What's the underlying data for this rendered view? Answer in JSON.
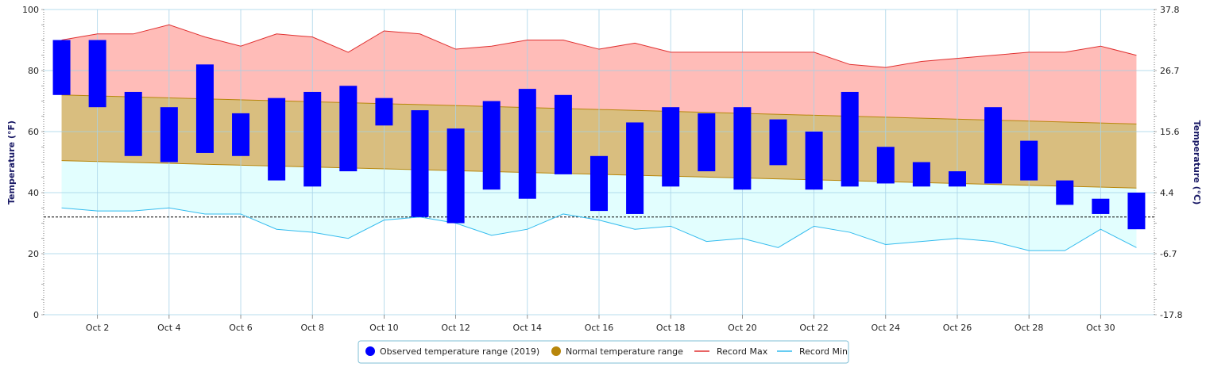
{
  "chart_data": {
    "type": "bar",
    "title": "",
    "xlabel": "",
    "ylabel": "Temperature (°F)",
    "y2label": "Temperature (°C)",
    "ylim": [
      0,
      100
    ],
    "y_ticks": [
      0,
      20,
      40,
      60,
      80,
      100
    ],
    "y2_ticks": [
      "-17.8",
      "-6.7",
      "4.4",
      "15.6",
      "26.7",
      "37.8"
    ],
    "x_tick_days": [
      2,
      4,
      6,
      8,
      10,
      12,
      14,
      16,
      18,
      20,
      22,
      24,
      26,
      28,
      30
    ],
    "x_tick_labels": [
      "Oct 2",
      "Oct 4",
      "Oct 6",
      "Oct 8",
      "Oct 10",
      "Oct 12",
      "Oct 14",
      "Oct 16",
      "Oct 18",
      "Oct 20",
      "Oct 22",
      "Oct 24",
      "Oct 26",
      "Oct 28",
      "Oct 30"
    ],
    "freezing_line": 32,
    "grid": true,
    "legend_position": "bottom",
    "series": [
      {
        "name": "Observed temperature range (2019)",
        "color": "#0000ff",
        "days": [
          1,
          2,
          3,
          4,
          5,
          6,
          7,
          8,
          9,
          10,
          11,
          12,
          13,
          14,
          15,
          16,
          17,
          18,
          19,
          20,
          21,
          22,
          23,
          24,
          25,
          26,
          27,
          28,
          29,
          30,
          31
        ],
        "low": [
          72,
          68,
          52,
          50,
          53,
          52,
          44,
          42,
          47,
          62,
          32,
          30,
          41,
          38,
          46,
          34,
          33,
          42,
          47,
          41,
          49,
          41,
          42,
          43,
          42,
          42,
          43,
          44,
          36,
          33,
          28
        ],
        "high": [
          90,
          90,
          73,
          68,
          82,
          66,
          71,
          73,
          75,
          71,
          67,
          61,
          70,
          74,
          72,
          52,
          63,
          68,
          66,
          68,
          64,
          60,
          73,
          55,
          50,
          47,
          68,
          57,
          44,
          38,
          40
        ]
      },
      {
        "name": "Normal temperature range",
        "color": "#b8860b",
        "fill": "#d9be7f",
        "start": [
          72,
          50.5
        ],
        "end": [
          62.5,
          41.5
        ]
      },
      {
        "name": "Record Max",
        "color": "#e03030",
        "fill": "#ffbcb8",
        "values": [
          90,
          92,
          92,
          95,
          91,
          88,
          92,
          91,
          86,
          93,
          92,
          87,
          88,
          90,
          90,
          87,
          89,
          86,
          86,
          86,
          86,
          86,
          82,
          81,
          83,
          84,
          85,
          86,
          86,
          88,
          85
        ]
      },
      {
        "name": "Record Min",
        "color": "#33bbee",
        "fill": "#e2fefe",
        "values": [
          35,
          34,
          34,
          35,
          33,
          33,
          28,
          27,
          25,
          31,
          32,
          30,
          26,
          28,
          33,
          31,
          28,
          29,
          24,
          25,
          22,
          29,
          27,
          23,
          24,
          25,
          24,
          21,
          21,
          28,
          22
        ]
      }
    ]
  }
}
